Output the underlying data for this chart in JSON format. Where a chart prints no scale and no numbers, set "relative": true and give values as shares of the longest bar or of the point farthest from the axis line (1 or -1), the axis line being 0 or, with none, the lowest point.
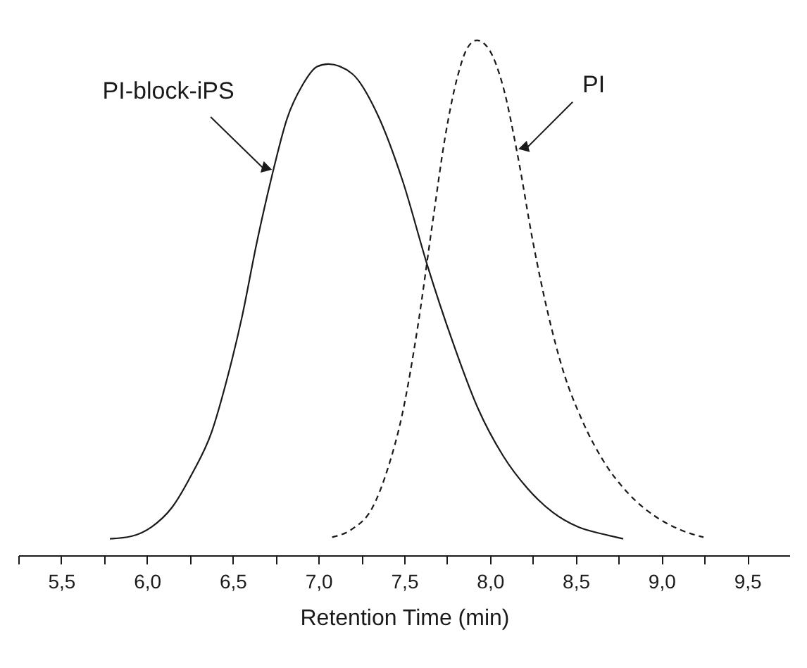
{
  "chart_data": {
    "type": "line",
    "relative": true,
    "xlabel": "Retention Time (min)",
    "xlim": [
      5.25,
      9.75
    ],
    "xticks": [
      {
        "value": 5.25,
        "label": null
      },
      {
        "value": 5.5,
        "label": "5,5"
      },
      {
        "value": 5.75,
        "label": null
      },
      {
        "value": 6.0,
        "label": "6,0"
      },
      {
        "value": 6.25,
        "label": null
      },
      {
        "value": 6.5,
        "label": "6,5"
      },
      {
        "value": 6.75,
        "label": null
      },
      {
        "value": 7.0,
        "label": "7,0"
      },
      {
        "value": 7.25,
        "label": null
      },
      {
        "value": 7.5,
        "label": "7,5"
      },
      {
        "value": 7.75,
        "label": null
      },
      {
        "value": 8.0,
        "label": "8,0"
      },
      {
        "value": 8.25,
        "label": null
      },
      {
        "value": 8.5,
        "label": "8,5"
      },
      {
        "value": 8.75,
        "label": null
      },
      {
        "value": 9.0,
        "label": "9,0"
      },
      {
        "value": 9.25,
        "label": null
      },
      {
        "value": 9.5,
        "label": "9,5"
      }
    ],
    "grid": false,
    "marker": "none",
    "series": [
      {
        "color": "#1a1a1a",
        "line_style": "solid",
        "x": [
          5.784,
          5.91,
          6.027,
          6.144,
          6.261,
          6.378,
          6.466,
          6.553,
          6.641,
          6.729,
          6.817,
          6.905,
          6.992,
          7.057,
          7.197,
          7.343,
          7.49,
          7.636,
          7.782,
          7.929,
          8.075,
          8.221,
          8.368,
          8.514,
          8.66,
          8.777
        ],
        "values": [
          0.032,
          0.037,
          0.055,
          0.092,
          0.157,
          0.24,
          0.341,
          0.461,
          0.608,
          0.737,
          0.848,
          0.912,
          0.949,
          0.954,
          0.935,
          0.857,
          0.728,
          0.562,
          0.415,
          0.286,
          0.194,
          0.129,
          0.083,
          0.055,
          0.041,
          0.032
        ]
      },
      {
        "color": "#1a1a1a",
        "line_style": "dashed",
        "x": [
          7.08,
          7.197,
          7.314,
          7.402,
          7.49,
          7.578,
          7.665,
          7.738,
          7.812,
          7.87,
          7.923,
          7.987,
          8.075,
          8.163,
          8.251,
          8.338,
          8.426,
          8.543,
          8.66,
          8.807,
          8.953,
          9.099,
          9.245
        ],
        "values": [
          0.035,
          0.051,
          0.092,
          0.166,
          0.276,
          0.442,
          0.645,
          0.811,
          0.931,
          0.986,
          1.0,
          0.986,
          0.912,
          0.774,
          0.608,
          0.47,
          0.359,
          0.258,
          0.184,
          0.12,
          0.078,
          0.051,
          0.035
        ]
      }
    ],
    "annotations": [
      {
        "text": "PI-block-iPS",
        "x": 6.7,
        "y": 0.75
      },
      {
        "text": "PI",
        "x": 8.17,
        "y": 0.79
      }
    ]
  }
}
